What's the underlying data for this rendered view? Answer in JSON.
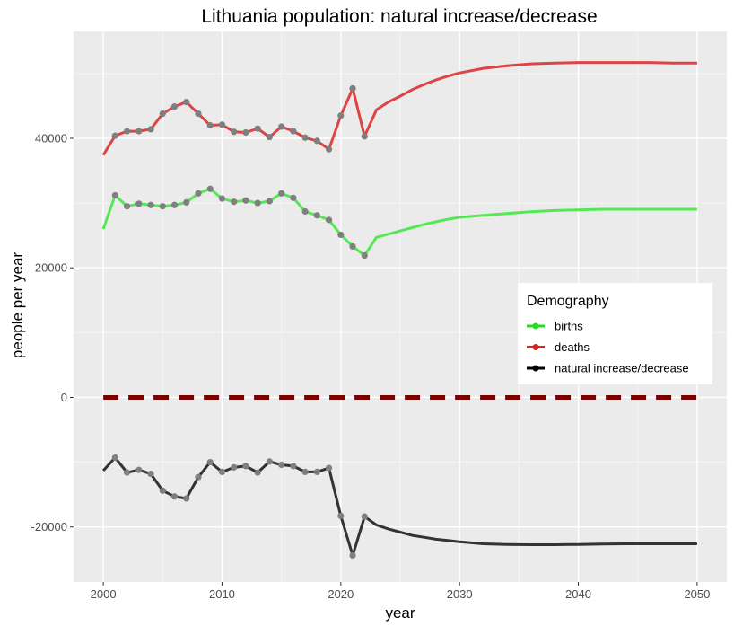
{
  "chart_data": {
    "type": "line",
    "title": "Lithuania population: natural increase/decrease",
    "xlabel": "year",
    "ylabel": "people per year",
    "xlim": [
      1997.5,
      2052.5
    ],
    "ylim": [
      -28500,
      56500
    ],
    "x_ticks": [
      2000,
      2010,
      2020,
      2030,
      2040,
      2050
    ],
    "x_tick_labels": [
      "2000",
      "2010",
      "2020",
      "2030",
      "2040",
      "2050"
    ],
    "y_ticks": [
      -20000,
      0,
      20000,
      40000
    ],
    "y_tick_labels": [
      "-20000",
      "0",
      "20000",
      "40000"
    ],
    "grid": true,
    "background": "#ebebeb",
    "legend": {
      "title": "Demography",
      "position": "right",
      "entries": [
        {
          "label": "births",
          "color": "#22dd22"
        },
        {
          "label": "deaths",
          "color": "#dd2222"
        },
        {
          "label": "natural increase/decrease",
          "color": "#000000"
        }
      ]
    },
    "series": [
      {
        "name": "births",
        "color": "#55e855",
        "x": [
          2000,
          2001,
          2002,
          2003,
          2004,
          2005,
          2006,
          2007,
          2008,
          2009,
          2010,
          2011,
          2012,
          2013,
          2014,
          2015,
          2016,
          2017,
          2018,
          2019,
          2020,
          2021,
          2022,
          2023,
          2024,
          2025,
          2026,
          2027,
          2028,
          2029,
          2030,
          2032,
          2034,
          2036,
          2038,
          2040,
          2042,
          2044,
          2046,
          2048,
          2050
        ],
        "y": [
          26000,
          31200,
          29500,
          29900,
          29700,
          29500,
          29700,
          30100,
          31500,
          32200,
          30700,
          30200,
          30400,
          30000,
          30300,
          31500,
          30800,
          28700,
          28100,
          27400,
          25100,
          23300,
          21900,
          24700,
          25200,
          25700,
          26200,
          26700,
          27100,
          27500,
          27800,
          28100,
          28400,
          28650,
          28850,
          28950,
          29050,
          29050,
          29050,
          29050,
          29050
        ]
      },
      {
        "name": "deaths",
        "color": "#dd4444",
        "x": [
          2000,
          2001,
          2002,
          2003,
          2004,
          2005,
          2006,
          2007,
          2008,
          2009,
          2010,
          2011,
          2012,
          2013,
          2014,
          2015,
          2016,
          2017,
          2018,
          2019,
          2020,
          2021,
          2022,
          2023,
          2024,
          2025,
          2026,
          2027,
          2028,
          2029,
          2030,
          2032,
          2034,
          2036,
          2038,
          2040,
          2042,
          2044,
          2046,
          2048,
          2050
        ],
        "y": [
          37400,
          40400,
          41100,
          41100,
          41400,
          43800,
          44900,
          45600,
          43800,
          42000,
          42100,
          41000,
          40900,
          41500,
          40200,
          41800,
          41100,
          40100,
          39600,
          38300,
          43500,
          47700,
          40300,
          44400,
          45600,
          46500,
          47500,
          48300,
          49000,
          49600,
          50100,
          50800,
          51200,
          51500,
          51600,
          51700,
          51700,
          51700,
          51700,
          51600,
          51600
        ]
      },
      {
        "name": "natural increase/decrease",
        "color": "#333333",
        "x": [
          2000,
          2001,
          2002,
          2003,
          2004,
          2005,
          2006,
          2007,
          2008,
          2009,
          2010,
          2011,
          2012,
          2013,
          2014,
          2015,
          2016,
          2017,
          2018,
          2019,
          2020,
          2021,
          2022,
          2023,
          2024,
          2025,
          2026,
          2027,
          2028,
          2029,
          2030,
          2032,
          2034,
          2036,
          2038,
          2040,
          2042,
          2044,
          2046,
          2048,
          2050
        ],
        "y": [
          -11300,
          -9300,
          -11600,
          -11200,
          -11800,
          -14400,
          -15300,
          -15600,
          -12300,
          -10000,
          -11500,
          -10800,
          -10600,
          -11600,
          -9900,
          -10400,
          -10600,
          -11500,
          -11500,
          -10900,
          -18300,
          -24400,
          -18400,
          -19700,
          -20300,
          -20800,
          -21300,
          -21600,
          -21900,
          -22100,
          -22300,
          -22600,
          -22700,
          -22750,
          -22750,
          -22700,
          -22650,
          -22600,
          -22600,
          -22600,
          -22600
        ]
      },
      {
        "name": "",
        "style": "dashed",
        "color": "#800000",
        "x": [
          2000,
          2050
        ],
        "y": [
          0,
          0
        ]
      }
    ],
    "points_last_x": 2022,
    "point_color": "#7f7f7f"
  }
}
